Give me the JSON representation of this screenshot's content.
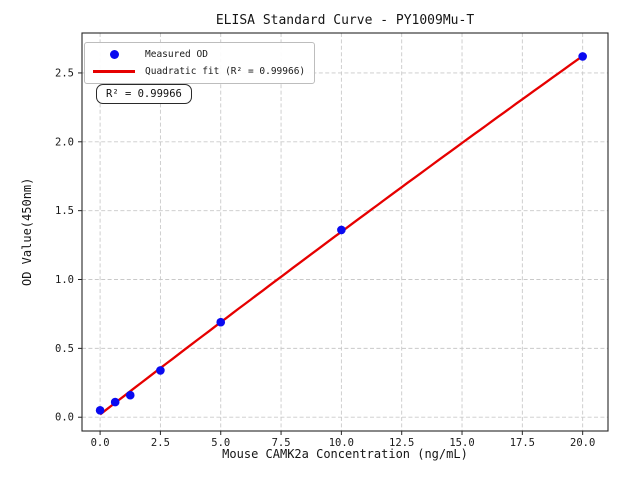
{
  "figure": {
    "background": "#ffffff"
  },
  "chart_data": {
    "type": "scatter",
    "title": "ELISA Standard Curve - PY1009Mu-T",
    "xlabel": "Mouse CAMK2a Concentration (ng/mL)",
    "ylabel": "OD Value(450nm)",
    "xlim": [
      -0.75,
      21.05
    ],
    "ylim": [
      -0.1,
      2.79
    ],
    "xticks": [
      0,
      2.5,
      5,
      7.5,
      10,
      12.5,
      15,
      17.5,
      20
    ],
    "xtick_labels": [
      "0.0",
      "2.5",
      "5.0",
      "7.5",
      "10.0",
      "12.5",
      "15.0",
      "17.5",
      "20.0"
    ],
    "yticks": [
      0,
      0.5,
      1.0,
      1.5,
      2.0,
      2.5
    ],
    "ytick_labels": [
      "0.0",
      "0.5",
      "1.0",
      "1.5",
      "2.0",
      "2.5"
    ],
    "grid": true,
    "grid_style": "dashed",
    "series": [
      {
        "name": "Measured OD",
        "type": "scatter",
        "color": "#0a0af0",
        "x": [
          0,
          0.625,
          1.25,
          2.5,
          5,
          10,
          20
        ],
        "y": [
          0.05,
          0.11,
          0.16,
          0.34,
          0.69,
          1.36,
          2.62
        ]
      },
      {
        "name": "Quadratic fit (R² = 0.99966)",
        "type": "quadratic_fit",
        "color": "#e60000",
        "fit_range": [
          0,
          20
        ],
        "r_squared": 0.99966
      }
    ],
    "legend": {
      "position": "upper-left",
      "entries": [
        {
          "marker": "dot",
          "color": "#0a0af0",
          "label": "Measured OD"
        },
        {
          "marker": "line",
          "color": "#e60000",
          "label": "Quadratic fit (R² = 0.99966)"
        }
      ]
    },
    "annotation": "R² = 0.99966",
    "colors": {
      "points": "#0a0af0",
      "fit_line": "#e60000",
      "grid": "#c9c9c9",
      "frame": "#262626"
    }
  }
}
